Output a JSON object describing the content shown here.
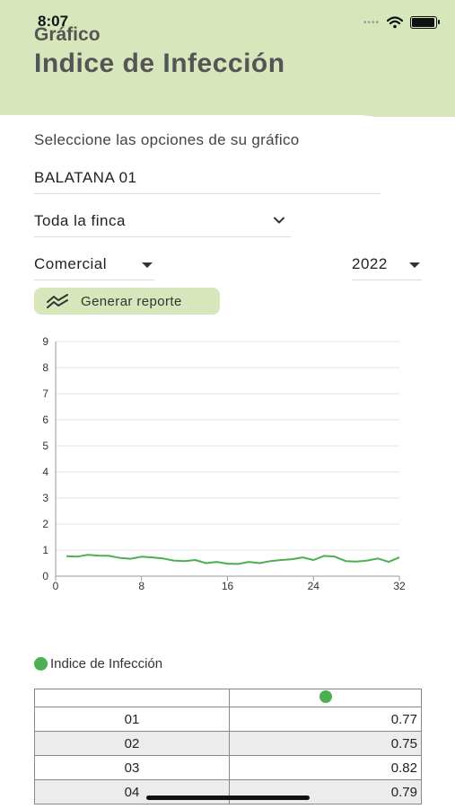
{
  "status_bar": {
    "time": "8:07",
    "signal_dots": "••••"
  },
  "header": {
    "subtitle": "Gráfico",
    "title": "Indice de Infección"
  },
  "form": {
    "instructions": "Seleccione las opciones de su gráfico",
    "farm": "BALATANA 01",
    "zone": "Toda la finca",
    "type": "Comercial",
    "year": "2022",
    "report_button": "Generar reporte"
  },
  "chart_data": {
    "type": "line",
    "xlim": [
      0,
      32
    ],
    "ylim": [
      0,
      9
    ],
    "x_ticks": [
      0,
      8,
      16,
      24,
      32
    ],
    "y_ticks": [
      0,
      1,
      2,
      3,
      4,
      5,
      6,
      7,
      8,
      9
    ],
    "grid": true,
    "color": "#4caf50",
    "series": [
      {
        "name": "Indice de Infección",
        "x": [
          1,
          2,
          3,
          4,
          5,
          6,
          7,
          8,
          9,
          10,
          11,
          12,
          13,
          14,
          15,
          16,
          17,
          18,
          19,
          20,
          21,
          22,
          23,
          24,
          25,
          26,
          27,
          28,
          29,
          30,
          31,
          32
        ],
        "values": [
          0.77,
          0.75,
          0.82,
          0.79,
          0.78,
          0.7,
          0.67,
          0.75,
          0.72,
          0.68,
          0.6,
          0.58,
          0.62,
          0.5,
          0.55,
          0.48,
          0.47,
          0.55,
          0.5,
          0.58,
          0.62,
          0.65,
          0.72,
          0.62,
          0.78,
          0.75,
          0.58,
          0.56,
          0.6,
          0.68,
          0.55,
          0.72
        ]
      }
    ]
  },
  "legend": {
    "label": "Indice de Infección",
    "color": "#4caf50"
  },
  "table": {
    "rows": [
      {
        "index": "01",
        "value": "0.77"
      },
      {
        "index": "02",
        "value": "0.75"
      },
      {
        "index": "03",
        "value": "0.82"
      },
      {
        "index": "04",
        "value": "0.79"
      }
    ]
  }
}
